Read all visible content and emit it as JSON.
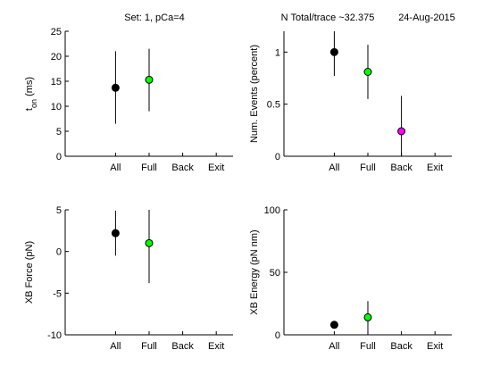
{
  "figure": {
    "title_left": "Set: 1, pCa=4",
    "title_mid": "N Total/trace ~32.375",
    "title_date": "24-Aug-2015"
  },
  "chart_data": [
    {
      "type": "scatter",
      "panel": "top-left",
      "categories": [
        "All",
        "Full",
        "Back",
        "Exit"
      ],
      "xlim": [
        0,
        5
      ],
      "ylim": [
        0,
        25
      ],
      "yticks": [
        0,
        5,
        10,
        15,
        20,
        25
      ],
      "ylabel_main": "t",
      "ylabel_sub": "on",
      "ylabel_unit": " (ms)",
      "points": [
        {
          "category": "All",
          "y": 13.7,
          "err_low": 6.5,
          "err_high": 21.0,
          "color": "#000000"
        },
        {
          "category": "Full",
          "y": 15.3,
          "err_low": 9.0,
          "err_high": 21.5,
          "color": "#00ff00"
        }
      ]
    },
    {
      "type": "scatter",
      "panel": "top-right",
      "categories": [
        "All",
        "Full",
        "Back",
        "Exit"
      ],
      "xlim": [
        0,
        5
      ],
      "ylim": [
        0,
        1.2
      ],
      "yticks": [
        0,
        0.5,
        1
      ],
      "ytick_labels": [
        "0",
        "0.5",
        "1"
      ],
      "ylabel": "Num. Events (percent)",
      "points": [
        {
          "category": "All",
          "y": 1.0,
          "err_low": 0.77,
          "err_high": 1.2,
          "color": "#000000"
        },
        {
          "category": "Full",
          "y": 0.81,
          "err_low": 0.55,
          "err_high": 1.07,
          "color": "#00ff00"
        },
        {
          "category": "Back",
          "y": 0.24,
          "err_low": 0.0,
          "err_high": 0.58,
          "color": "#ff00ff"
        }
      ]
    },
    {
      "type": "scatter",
      "panel": "bottom-left",
      "categories": [
        "All",
        "Full",
        "Back",
        "Exit"
      ],
      "xlim": [
        0,
        5
      ],
      "ylim": [
        -10,
        5
      ],
      "yticks": [
        -10,
        -5,
        0,
        5
      ],
      "ylabel": "XB Force (pN)",
      "points": [
        {
          "category": "All",
          "y": 2.2,
          "err_low": -0.5,
          "err_high": 4.9,
          "color": "#000000"
        },
        {
          "category": "Full",
          "y": 1.0,
          "err_low": -3.8,
          "err_high": 5.0,
          "color": "#00ff00"
        }
      ]
    },
    {
      "type": "scatter",
      "panel": "bottom-right",
      "categories": [
        "All",
        "Full",
        "Back",
        "Exit"
      ],
      "xlim": [
        0,
        5
      ],
      "ylim": [
        0,
        100
      ],
      "yticks": [
        0,
        50,
        100
      ],
      "ylabel": "XB Energy (pN nm)",
      "points": [
        {
          "category": "All",
          "y": 8.0,
          "err_low": 8.0,
          "err_high": 8.0,
          "color": "#000000"
        },
        {
          "category": "Full",
          "y": 14.0,
          "err_low": 1.0,
          "err_high": 27.0,
          "color": "#00ff00"
        }
      ]
    }
  ]
}
